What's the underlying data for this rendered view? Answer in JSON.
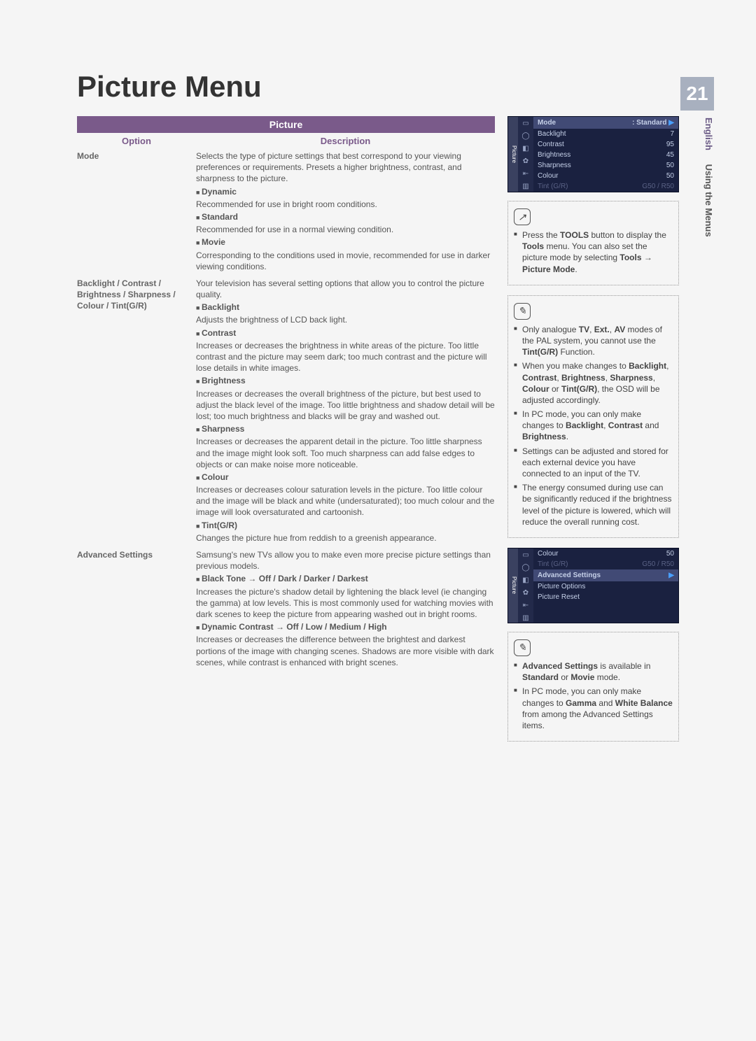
{
  "page": {
    "title": "Picture Menu",
    "number": "21",
    "language": "English",
    "section": "Using the Menus"
  },
  "table": {
    "header": "Picture",
    "col1": "Option",
    "col2": "Description",
    "rows": [
      {
        "option": "Mode",
        "intro": "Selects the type of picture settings that best correspond to your viewing preferences or requirements. Presets a higher brightness, contrast, and sharpness to the picture.",
        "items": [
          {
            "label": "Dynamic",
            "text": "Recommended for use in bright room conditions."
          },
          {
            "label": "Standard",
            "text": "Recommended for use in a normal viewing condition."
          },
          {
            "label": "Movie",
            "text": "Corresponding to the conditions used in movie, recommended for use in darker viewing conditions."
          }
        ]
      },
      {
        "option": "Backlight / Contrast / Brightness / Sharpness / Colour / Tint(G/R)",
        "intro": "Your television has several setting options that allow you to control the picture quality.",
        "items": [
          {
            "label": "Backlight",
            "text": "Adjusts the brightness of LCD back light."
          },
          {
            "label": "Contrast",
            "text": "Increases or decreases the brightness in white areas of the picture. Too little contrast and the picture may seem dark; too much contrast and the picture will lose details in white images."
          },
          {
            "label": "Brightness",
            "text": "Increases or decreases the overall brightness of the picture, but best used to adjust the black level of the image. Too little brightness and shadow detail will be lost; too much brightness and blacks will be gray and washed out."
          },
          {
            "label": "Sharpness",
            "text": "Increases or decreases the apparent detail in the picture. Too little sharpness and the image might look soft. Too much sharpness can add false edges to objects or can make noise more noticeable."
          },
          {
            "label": "Colour",
            "text": "Increases or decreases colour saturation levels in the picture. Too little colour and the image will be black and white (undersaturated); too much colour and the image will look oversaturated and cartoonish."
          },
          {
            "label": "Tint(G/R)",
            "text": "Changes the picture hue from reddish to a greenish appearance."
          }
        ]
      },
      {
        "option": "Advanced Settings",
        "intro": "Samsung's new TVs allow you to make even more precise picture settings than previous models.",
        "items": [
          {
            "label": "Black Tone → Off / Dark / Darker / Darkest",
            "text": "Increases the picture's shadow detail by lightening the black level (ie changing the gamma) at low levels. This is most commonly used for watching movies with dark scenes to keep the picture from appearing washed out in bright rooms."
          },
          {
            "label": "Dynamic Contrast → Off / Low / Medium / High",
            "text": "Increases or decreases the difference between the brightest and darkest portions of the image with changing scenes. Shadows are more visible with dark scenes, while contrast is enhanced with bright scenes."
          }
        ]
      }
    ]
  },
  "osd1": {
    "vtab": "Picture",
    "top_left": "Mode",
    "top_right": ": Standard",
    "lines": [
      {
        "l": "Backlight",
        "r": "7"
      },
      {
        "l": "Contrast",
        "r": "95"
      },
      {
        "l": "Brightness",
        "r": "45"
      },
      {
        "l": "Sharpness",
        "r": "50"
      },
      {
        "l": "Colour",
        "r": "50"
      },
      {
        "l": "Tint (G/R)",
        "r": "G50 / R50",
        "dim": true
      }
    ]
  },
  "note1": {
    "icon": "↗",
    "items": [
      "Press the <b>TOOLS</b> button to display the <b>Tools</b> menu. You can also set the picture mode by selecting <b>Tools → Picture Mode</b>."
    ]
  },
  "note2": {
    "icon": "✎",
    "items": [
      "Only analogue <b>TV</b>, <b>Ext.</b>, <b>AV</b> modes of the PAL system, you cannot use the <b>Tint(G/R)</b> Function.",
      "When you make changes to <b>Backlight</b>, <b>Contrast</b>, <b>Brightness</b>, <b>Sharpness</b>, <b>Colour</b> or <b>Tint(G/R)</b>, the OSD will be adjusted accordingly.",
      "In PC mode, you can only make changes to <b>Backlight</b>, <b>Contrast</b> and <b>Brightness</b>.",
      "Settings can be adjusted and stored for each external device you have connected to an input of the TV.",
      "The energy consumed during use can be significantly reduced if the brightness level of the picture is lowered, which will reduce the overall running cost."
    ]
  },
  "osd2": {
    "vtab": "Picture",
    "pre": [
      {
        "l": "Colour",
        "r": "50"
      },
      {
        "l": "Tint (G/R)",
        "r": "G50 / R50",
        "dim": true
      }
    ],
    "hl": "Advanced Settings",
    "post": [
      {
        "l": "Picture Options",
        "r": ""
      },
      {
        "l": "Picture Reset",
        "r": ""
      }
    ]
  },
  "note3": {
    "icon": "✎",
    "items": [
      "<b>Advanced Settings</b> is available in <b>Standard</b> or <b>Movie</b> mode.",
      "In PC mode, you can only make changes to <b>Gamma</b> and <b>White Balance</b> from among the Advanced Settings items."
    ]
  }
}
